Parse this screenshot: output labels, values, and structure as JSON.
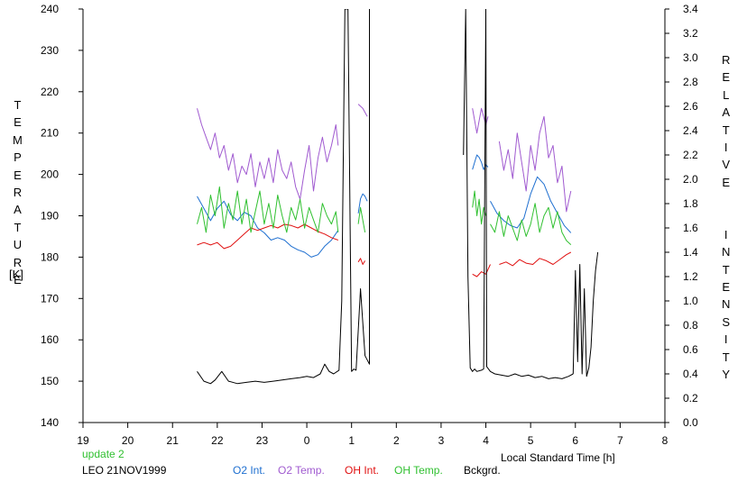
{
  "chart_data": {
    "type": "line",
    "left_axis": {
      "label": "TEMPERATURE",
      "unit": "[K]",
      "ylim": [
        140,
        240
      ],
      "ticks": [
        "140",
        "150",
        "160",
        "170",
        "180",
        "190",
        "200",
        "210",
        "220",
        "230",
        "240"
      ]
    },
    "right_axis": {
      "label": "RELATIVE  INTENSITY",
      "ylim": [
        0.0,
        3.4
      ],
      "ticks": [
        "0.0",
        "0.2",
        "0.4",
        "0.6",
        "0.8",
        "1.0",
        "1.2",
        "1.4",
        "1.6",
        "1.8",
        "2.0",
        "2.2",
        "2.4",
        "2.6",
        "2.8",
        "3.0",
        "3.2",
        "3.4"
      ]
    },
    "x_axis": {
      "label": "Local Standard Time [h]",
      "xlim": [
        19,
        32
      ],
      "ticks": [
        "19",
        "20",
        "21",
        "22",
        "23",
        "0",
        "1",
        "2",
        "3",
        "4",
        "5",
        "6",
        "7",
        "8"
      ]
    },
    "grid": false,
    "legend_placement": "bottom",
    "series": [
      {
        "name": "O2 Int.",
        "color": "#1e6fd0",
        "axis": "right",
        "segments": [
          {
            "x": [
              21.55,
              21.7,
              21.85,
              22.0,
              22.15,
              22.3,
              22.45,
              22.6,
              22.75,
              22.9,
              23.05,
              23.2,
              23.35,
              23.5,
              23.65,
              23.8,
              23.95,
              24.1,
              24.25,
              24.4,
              24.55,
              24.7
            ],
            "y": [
              1.86,
              1.76,
              1.66,
              1.76,
              1.82,
              1.71,
              1.66,
              1.73,
              1.7,
              1.6,
              1.56,
              1.5,
              1.52,
              1.5,
              1.45,
              1.42,
              1.4,
              1.36,
              1.38,
              1.45,
              1.5,
              1.58
            ]
          },
          {
            "x": [
              25.15,
              25.2,
              25.25,
              25.3,
              25.35
            ],
            "y": [
              1.72,
              1.84,
              1.88,
              1.86,
              1.82
            ]
          },
          {
            "x": [
              27.7,
              27.75,
              27.8,
              27.85,
              27.9,
              27.95,
              28.0,
              28.05
            ],
            "y": [
              2.08,
              2.14,
              2.2,
              2.18,
              2.14,
              2.08,
              2.12,
              2.1
            ]
          },
          {
            "x": [
              28.1,
              28.25,
              28.4,
              28.55,
              28.7,
              28.85,
              29.0,
              29.15,
              29.3,
              29.45,
              29.6,
              29.75,
              29.9
            ],
            "y": [
              1.82,
              1.72,
              1.66,
              1.62,
              1.6,
              1.68,
              1.88,
              2.02,
              1.96,
              1.82,
              1.72,
              1.62,
              1.56
            ]
          }
        ]
      },
      {
        "name": "O2 Temp.",
        "color": "#a05ad0",
        "axis": "left",
        "segments": [
          {
            "x": [
              21.55,
              21.65,
              21.75,
              21.85,
              21.95,
              22.05,
              22.15,
              22.25,
              22.35,
              22.45,
              22.55,
              22.65,
              22.75,
              22.85,
              22.95,
              23.05,
              23.15,
              23.25,
              23.35,
              23.45,
              23.55,
              23.65,
              23.75,
              23.85,
              23.95,
              24.05,
              24.15,
              24.25,
              24.35,
              24.45,
              24.55,
              24.65,
              24.7
            ],
            "y": [
              216,
              212,
              209,
              206,
              210,
              204,
              207,
              201,
              205,
              198,
              202,
              200,
              205,
              197,
              203,
              199,
              204,
              198,
              206,
              201,
              199,
              203,
              197,
              194,
              201,
              207,
              196,
              204,
              209,
              203,
              207,
              212,
              207
            ]
          },
          {
            "x": [
              25.15,
              25.25,
              25.35
            ],
            "y": [
              217,
              216,
              214
            ]
          },
          {
            "x": [
              27.7,
              27.8,
              27.9,
              28.0,
              28.05
            ],
            "y": [
              216,
              210,
              216,
              212,
              214
            ]
          },
          {
            "x": [
              28.3,
              28.4,
              28.5,
              28.6,
              28.7,
              28.8,
              28.9,
              29.0,
              29.1,
              29.2,
              29.3,
              29.4,
              29.5,
              29.6,
              29.7,
              29.8,
              29.9
            ],
            "y": [
              208,
              201,
              206,
              199,
              210,
              203,
              196,
              207,
              201,
              210,
              214,
              204,
              207,
              198,
              202,
              191,
              196
            ]
          }
        ]
      },
      {
        "name": "OH Int.",
        "color": "#e01010",
        "axis": "right",
        "segments": [
          {
            "x": [
              21.55,
              21.7,
              21.85,
              22.0,
              22.15,
              22.3,
              22.45,
              22.6,
              22.75,
              22.9,
              23.05,
              23.2,
              23.35,
              23.5,
              23.65,
              23.8,
              23.95,
              24.1,
              24.25,
              24.4,
              24.55,
              24.7
            ],
            "y": [
              1.46,
              1.48,
              1.46,
              1.48,
              1.43,
              1.45,
              1.5,
              1.55,
              1.6,
              1.58,
              1.6,
              1.62,
              1.6,
              1.63,
              1.62,
              1.6,
              1.63,
              1.6,
              1.57,
              1.55,
              1.52,
              1.5
            ]
          },
          {
            "x": [
              25.15,
              25.2,
              25.25,
              25.3
            ],
            "y": [
              1.32,
              1.35,
              1.3,
              1.33
            ]
          },
          {
            "x": [
              27.7,
              27.8,
              27.9,
              28.0,
              28.1
            ],
            "y": [
              1.22,
              1.2,
              1.24,
              1.22,
              1.3
            ]
          },
          {
            "x": [
              28.3,
              28.45,
              28.6,
              28.75,
              28.9,
              29.05,
              29.2,
              29.35,
              29.5,
              29.65,
              29.8,
              29.9
            ],
            "y": [
              1.3,
              1.32,
              1.29,
              1.34,
              1.31,
              1.3,
              1.35,
              1.33,
              1.3,
              1.34,
              1.38,
              1.4
            ]
          }
        ]
      },
      {
        "name": "OH Temp.",
        "color": "#30c030",
        "axis": "left",
        "segments": [
          {
            "x": [
              21.55,
              21.65,
              21.75,
              21.85,
              21.95,
              22.05,
              22.15,
              22.25,
              22.35,
              22.45,
              22.55,
              22.65,
              22.75,
              22.85,
              22.95,
              23.05,
              23.15,
              23.25,
              23.35,
              23.45,
              23.55,
              23.65,
              23.75,
              23.85,
              23.95,
              24.05,
              24.15,
              24.25,
              24.35,
              24.45,
              24.55,
              24.65,
              24.7
            ],
            "y": [
              188,
              192,
              186,
              195,
              190,
              197,
              187,
              193,
              189,
              196,
              188,
              194,
              186,
              191,
              196,
              188,
              193,
              187,
              195,
              190,
              186,
              192,
              189,
              194,
              187,
              192,
              189,
              186,
              193,
              190,
              188,
              191,
              186
            ]
          },
          {
            "x": [
              25.15,
              25.2,
              25.25,
              25.3
            ],
            "y": [
              188,
              192,
              189,
              186
            ]
          },
          {
            "x": [
              27.7,
              27.75,
              27.8,
              27.85,
              27.9,
              27.95,
              28.0
            ],
            "y": [
              192,
              196,
              190,
              194,
              188,
              192,
              190
            ]
          },
          {
            "x": [
              28.1,
              28.2,
              28.3,
              28.4,
              28.5,
              28.6,
              28.7,
              28.8,
              28.9,
              29.0,
              29.1,
              29.2,
              29.3,
              29.4,
              29.5,
              29.6,
              29.7,
              29.8,
              29.9
            ],
            "y": [
              188,
              186,
              191,
              185,
              190,
              187,
              184,
              189,
              185,
              188,
              193,
              186,
              190,
              192,
              187,
              191,
              186,
              184,
              183
            ]
          }
        ]
      },
      {
        "name": "Bckgrd.",
        "color": "#000000",
        "axis": "right",
        "segments": [
          {
            "x": [
              21.55,
              21.7,
              21.85,
              21.95,
              22.1,
              22.25,
              22.45,
              22.65,
              22.85,
              23.05,
              23.25,
              23.45,
              23.65,
              23.85,
              24.0,
              24.15,
              24.3,
              24.4,
              24.5,
              24.6,
              24.72,
              24.78,
              24.85,
              24.92,
              25.0,
              25.05,
              25.1,
              25.2,
              25.3,
              25.4,
              25.4
            ],
            "y": [
              0.42,
              0.34,
              0.32,
              0.35,
              0.42,
              0.34,
              0.32,
              0.33,
              0.34,
              0.33,
              0.34,
              0.35,
              0.36,
              0.37,
              0.38,
              0.37,
              0.4,
              0.48,
              0.42,
              0.4,
              0.43,
              1.0,
              3.4,
              3.4,
              0.42,
              0.44,
              0.43,
              1.1,
              0.55,
              0.48,
              3.4
            ]
          },
          {
            "x": [
              27.5,
              27.55,
              27.6,
              27.65,
              27.7,
              27.75,
              27.8,
              27.9,
              27.95,
              28.0,
              28.02,
              28.1,
              28.2,
              28.35,
              28.5,
              28.65,
              28.8,
              28.95,
              29.1,
              29.25,
              29.4,
              29.55,
              29.7,
              29.85,
              29.95
            ],
            "y": [
              2.2,
              3.4,
              1.2,
              0.45,
              0.42,
              0.44,
              0.42,
              0.43,
              0.44,
              3.4,
              0.46,
              0.42,
              0.4,
              0.39,
              0.38,
              0.4,
              0.38,
              0.39,
              0.37,
              0.38,
              0.36,
              0.37,
              0.36,
              0.38,
              0.4
            ]
          },
          {
            "x": [
              29.95,
              30.0,
              30.05,
              30.1,
              30.15,
              30.2,
              30.25,
              30.3,
              30.35,
              30.4,
              30.45,
              30.5
            ],
            "y": [
              0.4,
              1.25,
              0.5,
              1.3,
              0.4,
              1.1,
              0.38,
              0.45,
              0.62,
              1.0,
              1.25,
              1.4
            ]
          }
        ]
      }
    ]
  },
  "annotations": {
    "update": "update 2",
    "station": "LEO 21NOV1999",
    "update_color": "#30c030"
  }
}
